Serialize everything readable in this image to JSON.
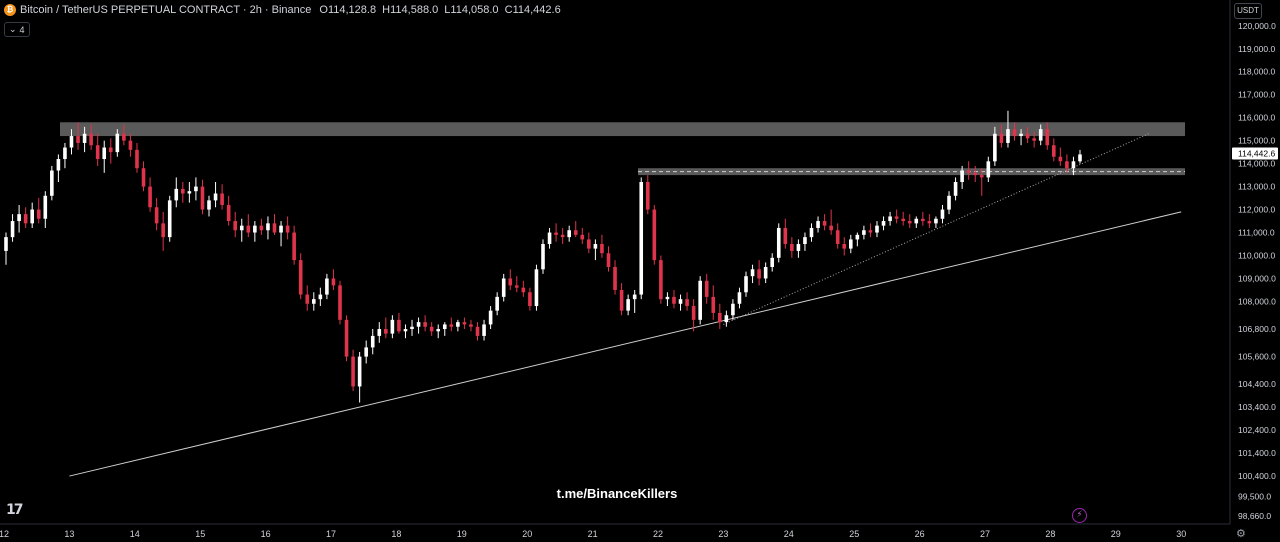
{
  "header": {
    "symbol_title": "Bitcoin / TetherUS PERPETUAL CONTRACT · 2h · Binance",
    "open_label": "O",
    "open": "114,128.8",
    "high_label": "H",
    "high": "114,588.0",
    "low_label": "L",
    "low": "114,058.0",
    "close_label": "C",
    "close": "114,442.6",
    "indicator_count": "4"
  },
  "currency": "USDT",
  "watermark": "t.me/BinanceKillers",
  "colors": {
    "up": "#ffffff",
    "down": "#e0344d",
    "zone": "#6a6a6a",
    "grid": "#161616",
    "text": "#d1d4dc"
  },
  "chart_data": {
    "type": "candlestick",
    "price_axis_ticks": [
      "120,000.0",
      "119,000.0",
      "118,000.0",
      "117,000.0",
      "116,000.0",
      "115,000.0",
      "114,000.0",
      "113,000.0",
      "112,000.0",
      "111,000.0",
      "110,000.0",
      "109,000.0",
      "108,000.0",
      "106,800.0",
      "105,600.0",
      "104,400.0",
      "103,400.0",
      "102,400.0",
      "101,400.0",
      "100,400.0",
      "99,500.0",
      "98,660.0"
    ],
    "time_axis_ticks": [
      "12",
      "13",
      "14",
      "15",
      "16",
      "17",
      "18",
      "19",
      "20",
      "21",
      "22",
      "23",
      "24",
      "25",
      "26",
      "27",
      "28",
      "29",
      "30"
    ],
    "ylim": [
      98400,
      120600
    ],
    "last_price": "114,442.6",
    "candles": [
      [
        110200,
        111000,
        109600,
        110800
      ],
      [
        110800,
        111800,
        110600,
        111500
      ],
      [
        111500,
        112200,
        111000,
        111800
      ],
      [
        111800,
        112100,
        111200,
        111400
      ],
      [
        111400,
        112300,
        111200,
        112000
      ],
      [
        112000,
        112500,
        111400,
        111600
      ],
      [
        111600,
        112800,
        111200,
        112600
      ],
      [
        112600,
        113900,
        112400,
        113700
      ],
      [
        113700,
        114400,
        113200,
        114200
      ],
      [
        114200,
        114900,
        113800,
        114700
      ],
      [
        114700,
        115500,
        114400,
        115200
      ],
      [
        115200,
        115800,
        114600,
        114900
      ],
      [
        114900,
        115600,
        114500,
        115300
      ],
      [
        115300,
        115700,
        114600,
        114800
      ],
      [
        114800,
        115300,
        113900,
        114200
      ],
      [
        114200,
        115000,
        113600,
        114700
      ],
      [
        114700,
        115100,
        114000,
        114500
      ],
      [
        114500,
        115500,
        114300,
        115300
      ],
      [
        115300,
        115700,
        114800,
        115000
      ],
      [
        115000,
        115300,
        114300,
        114600
      ],
      [
        114600,
        114900,
        113600,
        113800
      ],
      [
        113800,
        114100,
        112800,
        113000
      ],
      [
        113000,
        113400,
        111900,
        112100
      ],
      [
        112100,
        112500,
        111100,
        111400
      ],
      [
        111400,
        111900,
        110200,
        110800
      ],
      [
        110800,
        112600,
        110600,
        112400
      ],
      [
        112400,
        113400,
        112100,
        112900
      ],
      [
        112900,
        113200,
        112300,
        112700
      ],
      [
        112700,
        113200,
        112300,
        112800
      ],
      [
        112800,
        113400,
        112400,
        113000
      ],
      [
        113000,
        113300,
        111800,
        112000
      ],
      [
        112000,
        112600,
        111700,
        112400
      ],
      [
        112400,
        113200,
        112100,
        112700
      ],
      [
        112700,
        113100,
        112000,
        112200
      ],
      [
        112200,
        112600,
        111300,
        111500
      ],
      [
        111500,
        111900,
        110800,
        111100
      ],
      [
        111100,
        111600,
        110600,
        111300
      ],
      [
        111300,
        111800,
        110800,
        111000
      ],
      [
        111000,
        111500,
        110600,
        111300
      ],
      [
        111300,
        111600,
        110900,
        111100
      ],
      [
        111100,
        111700,
        110700,
        111400
      ],
      [
        111400,
        111800,
        110900,
        111000
      ],
      [
        111000,
        111500,
        110400,
        111300
      ],
      [
        111300,
        111700,
        110700,
        111000
      ],
      [
        111000,
        111300,
        109600,
        109800
      ],
      [
        109800,
        110100,
        108100,
        108300
      ],
      [
        108300,
        108700,
        107600,
        107900
      ],
      [
        107900,
        108400,
        107600,
        108100
      ],
      [
        108100,
        108600,
        107800,
        108300
      ],
      [
        108300,
        109200,
        108100,
        109000
      ],
      [
        109000,
        109400,
        108500,
        108700
      ],
      [
        108700,
        108900,
        107000,
        107200
      ],
      [
        107200,
        107400,
        105400,
        105600
      ],
      [
        105600,
        105900,
        104100,
        104300
      ],
      [
        104300,
        105800,
        103600,
        105600
      ],
      [
        105600,
        106300,
        105300,
        106000
      ],
      [
        106000,
        106800,
        105700,
        106500
      ],
      [
        106500,
        107100,
        106200,
        106800
      ],
      [
        106800,
        107300,
        106400,
        106600
      ],
      [
        106600,
        107400,
        106400,
        107200
      ],
      [
        107200,
        107500,
        106600,
        106700
      ],
      [
        106700,
        107000,
        106400,
        106800
      ],
      [
        106800,
        107200,
        106500,
        106900
      ],
      [
        106900,
        107300,
        106600,
        107100
      ],
      [
        107100,
        107400,
        106700,
        106900
      ],
      [
        106900,
        107100,
        106500,
        106700
      ],
      [
        106700,
        107000,
        106400,
        106800
      ],
      [
        106800,
        107100,
        106500,
        107000
      ],
      [
        107000,
        107300,
        106700,
        106900
      ],
      [
        106900,
        107200,
        106700,
        107100
      ],
      [
        107100,
        107300,
        106800,
        107000
      ],
      [
        107000,
        107200,
        106700,
        106900
      ],
      [
        106900,
        107100,
        106300,
        106500
      ],
      [
        106500,
        107200,
        106300,
        107000
      ],
      [
        107000,
        107800,
        106800,
        107600
      ],
      [
        107600,
        108400,
        107400,
        108200
      ],
      [
        108200,
        109200,
        108000,
        109000
      ],
      [
        109000,
        109400,
        108500,
        108700
      ],
      [
        108700,
        109100,
        108400,
        108600
      ],
      [
        108600,
        108900,
        108200,
        108400
      ],
      [
        108400,
        108600,
        107600,
        107800
      ],
      [
        107800,
        109600,
        107600,
        109400
      ],
      [
        109400,
        110700,
        109200,
        110500
      ],
      [
        110500,
        111200,
        110300,
        111000
      ],
      [
        111000,
        111400,
        110600,
        110900
      ],
      [
        110900,
        111200,
        110500,
        110800
      ],
      [
        110800,
        111300,
        110600,
        111100
      ],
      [
        111100,
        111500,
        110800,
        110900
      ],
      [
        110900,
        111200,
        110500,
        110700
      ],
      [
        110700,
        111000,
        110100,
        110300
      ],
      [
        110300,
        110700,
        109800,
        110500
      ],
      [
        110500,
        110900,
        109900,
        110100
      ],
      [
        110100,
        110400,
        109300,
        109500
      ],
      [
        109500,
        109800,
        108300,
        108500
      ],
      [
        108500,
        108800,
        107400,
        107600
      ],
      [
        107600,
        108300,
        107400,
        108100
      ],
      [
        108100,
        108500,
        107500,
        108300
      ],
      [
        108300,
        113400,
        108100,
        113200
      ],
      [
        113200,
        113500,
        111800,
        112000
      ],
      [
        112000,
        112200,
        109600,
        109800
      ],
      [
        109800,
        110000,
        107900,
        108100
      ],
      [
        108100,
        108400,
        107800,
        108200
      ],
      [
        108200,
        108500,
        107700,
        107900
      ],
      [
        107900,
        108300,
        107600,
        108100
      ],
      [
        108100,
        108400,
        107600,
        107800
      ],
      [
        107800,
        108100,
        106700,
        107200
      ],
      [
        107200,
        109100,
        107000,
        108900
      ],
      [
        108900,
        109200,
        107900,
        108200
      ],
      [
        108200,
        108700,
        107200,
        107500
      ],
      [
        107500,
        107900,
        106800,
        107100
      ],
      [
        107100,
        107600,
        106900,
        107400
      ],
      [
        107400,
        108100,
        107200,
        107900
      ],
      [
        107900,
        108600,
        107700,
        108400
      ],
      [
        108400,
        109300,
        108200,
        109100
      ],
      [
        109100,
        109600,
        108800,
        109400
      ],
      [
        109400,
        109800,
        108700,
        109000
      ],
      [
        109000,
        109700,
        108800,
        109500
      ],
      [
        109500,
        110100,
        109300,
        109900
      ],
      [
        109900,
        111400,
        109700,
        111200
      ],
      [
        111200,
        111600,
        110300,
        110500
      ],
      [
        110500,
        110800,
        109900,
        110200
      ],
      [
        110200,
        110700,
        109900,
        110500
      ],
      [
        110500,
        111000,
        110200,
        110800
      ],
      [
        110800,
        111400,
        110600,
        111200
      ],
      [
        111200,
        111700,
        111000,
        111500
      ],
      [
        111500,
        111800,
        111100,
        111300
      ],
      [
        111300,
        112000,
        110900,
        111100
      ],
      [
        111100,
        111400,
        110300,
        110500
      ],
      [
        110500,
        110800,
        110000,
        110300
      ],
      [
        110300,
        110900,
        110100,
        110700
      ],
      [
        110700,
        111000,
        110400,
        110900
      ],
      [
        110900,
        111300,
        110700,
        111100
      ],
      [
        111100,
        111400,
        110800,
        111000
      ],
      [
        111000,
        111500,
        110800,
        111300
      ],
      [
        111300,
        111700,
        111100,
        111500
      ],
      [
        111500,
        111900,
        111300,
        111700
      ],
      [
        111700,
        112000,
        111400,
        111600
      ],
      [
        111600,
        111900,
        111300,
        111500
      ],
      [
        111500,
        111800,
        111200,
        111400
      ],
      [
        111400,
        111700,
        111200,
        111600
      ],
      [
        111600,
        111900,
        111300,
        111500
      ],
      [
        111500,
        111800,
        111200,
        111400
      ],
      [
        111400,
        111700,
        111200,
        111600
      ],
      [
        111600,
        112200,
        111400,
        112000
      ],
      [
        112000,
        112800,
        111800,
        112600
      ],
      [
        112600,
        113400,
        112400,
        113200
      ],
      [
        113200,
        113900,
        112900,
        113700
      ],
      [
        113700,
        114100,
        113300,
        113600
      ],
      [
        113600,
        113900,
        113200,
        113500
      ],
      [
        113500,
        113800,
        112600,
        113400
      ],
      [
        113400,
        114300,
        113200,
        114100
      ],
      [
        114100,
        115600,
        113900,
        115300
      ],
      [
        115300,
        115700,
        114700,
        114900
      ],
      [
        114900,
        116300,
        114700,
        115500
      ],
      [
        115500,
        115800,
        115000,
        115200
      ],
      [
        115200,
        115500,
        114800,
        115300
      ],
      [
        115300,
        115600,
        114900,
        115100
      ],
      [
        115100,
        115400,
        114700,
        115000
      ],
      [
        115000,
        115700,
        114800,
        115500
      ],
      [
        115500,
        115800,
        114600,
        114800
      ],
      [
        114800,
        115100,
        114100,
        114300
      ],
      [
        114300,
        114700,
        113900,
        114100
      ],
      [
        114100,
        114400,
        113600,
        113800
      ],
      [
        113800,
        114300,
        113500,
        114100
      ],
      [
        114100,
        114600,
        114000,
        114400
      ]
    ],
    "zones": [
      {
        "from": 115200,
        "to": 115800
      },
      {
        "from": 113500,
        "to": 113800
      }
    ],
    "trendlines": [
      {
        "style": "solid",
        "p1": {
          "x": "13",
          "y": 100400
        },
        "p2": {
          "x": "30",
          "y": 111900
        }
      },
      {
        "style": "dotted",
        "p1": {
          "x": "23",
          "y": 107000
        },
        "p2": {
          "x": "29.5",
          "y": 115300
        }
      }
    ],
    "grid": false
  }
}
